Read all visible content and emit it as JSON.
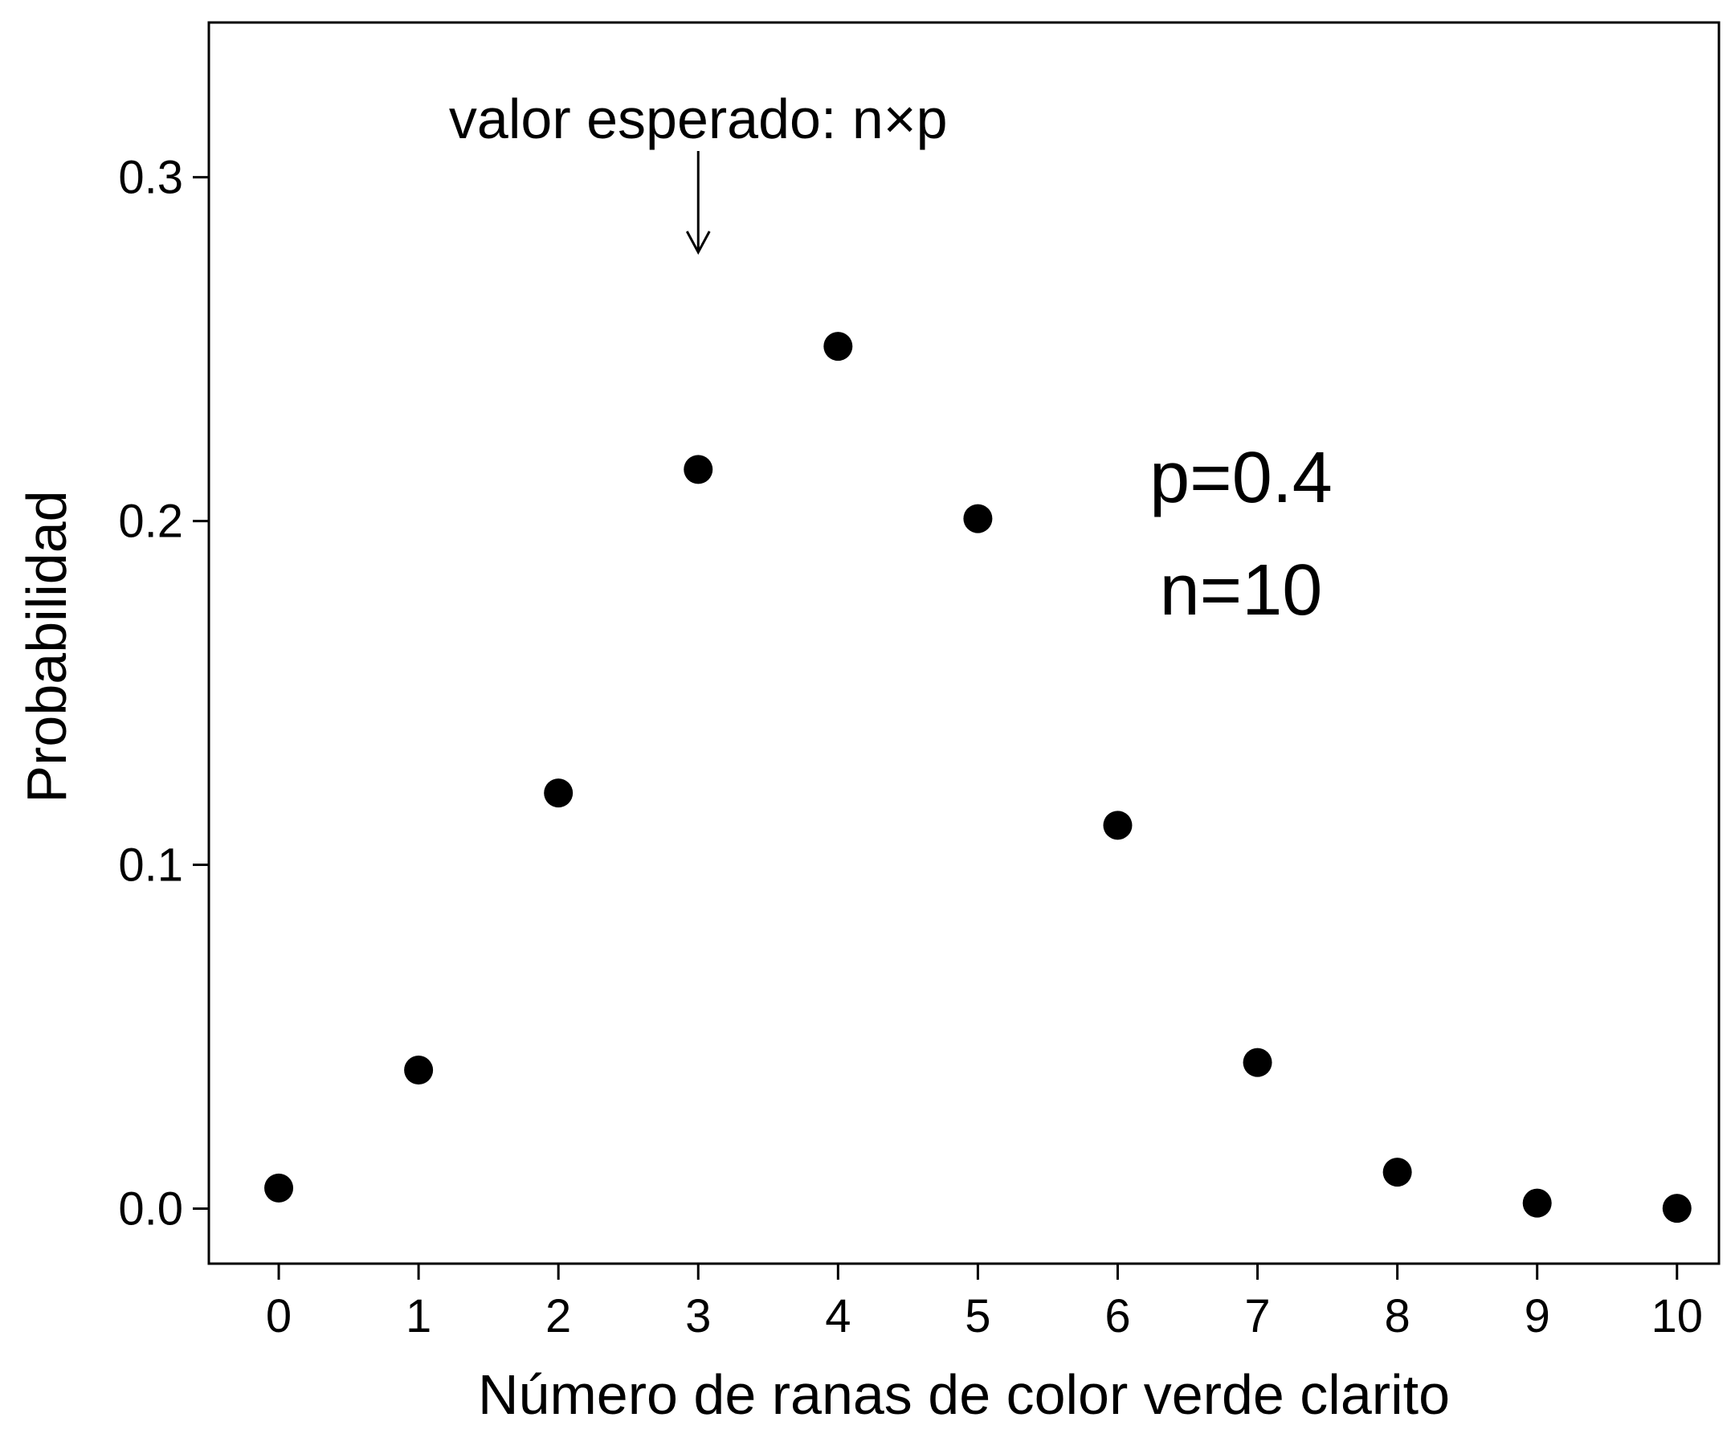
{
  "chart_data": {
    "type": "scatter",
    "xlabel": "Número de ranas de color verde clarito",
    "ylabel": "Probabilidad",
    "x": [
      0,
      1,
      2,
      3,
      4,
      5,
      6,
      7,
      8,
      9,
      10
    ],
    "y": [
      0.006,
      0.0403,
      0.1209,
      0.215,
      0.2508,
      0.2007,
      0.1115,
      0.0425,
      0.0106,
      0.0016,
      0.0001
    ],
    "xticks": [
      "0",
      "1",
      "2",
      "3",
      "4",
      "5",
      "6",
      "7",
      "8",
      "9",
      "10"
    ],
    "yticks": [
      "0.0",
      "0.1",
      "0.2",
      "0.3"
    ],
    "xlim": [
      -0.5,
      10.3
    ],
    "ylim": [
      -0.016,
      0.345
    ],
    "grid": false,
    "annotation": {
      "text": "valor esperado: n×p",
      "x": 3
    },
    "params": [
      "p=0.4",
      "n=10"
    ],
    "point_color": "#000000"
  }
}
